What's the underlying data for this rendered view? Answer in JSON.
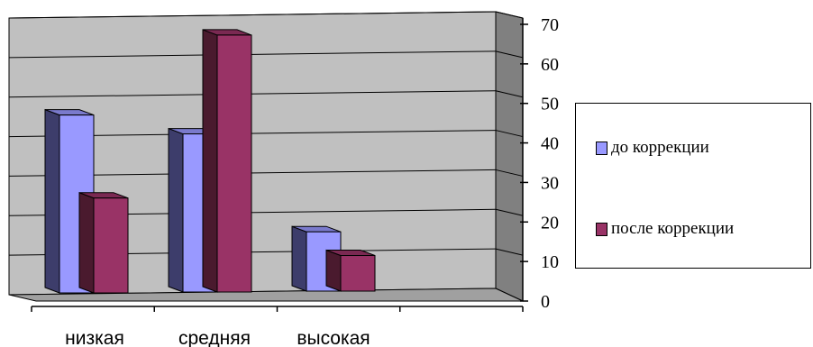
{
  "chart_data": {
    "type": "bar",
    "categories": [
      "низкая",
      "средняя",
      "высокая"
    ],
    "series": [
      {
        "name": "до коррекции",
        "values": [
          45,
          40,
          15
        ],
        "color": "#9999ff"
      },
      {
        "name": "после коррекции",
        "values": [
          24,
          65,
          9
        ],
        "color": "#993366"
      }
    ],
    "ylim": [
      0,
      70
    ],
    "yticks": [
      "0",
      "10",
      "20",
      "30",
      "40",
      "50",
      "60",
      "70"
    ],
    "grid": true,
    "legend_position": "right",
    "style": "3d-clustered-column"
  }
}
